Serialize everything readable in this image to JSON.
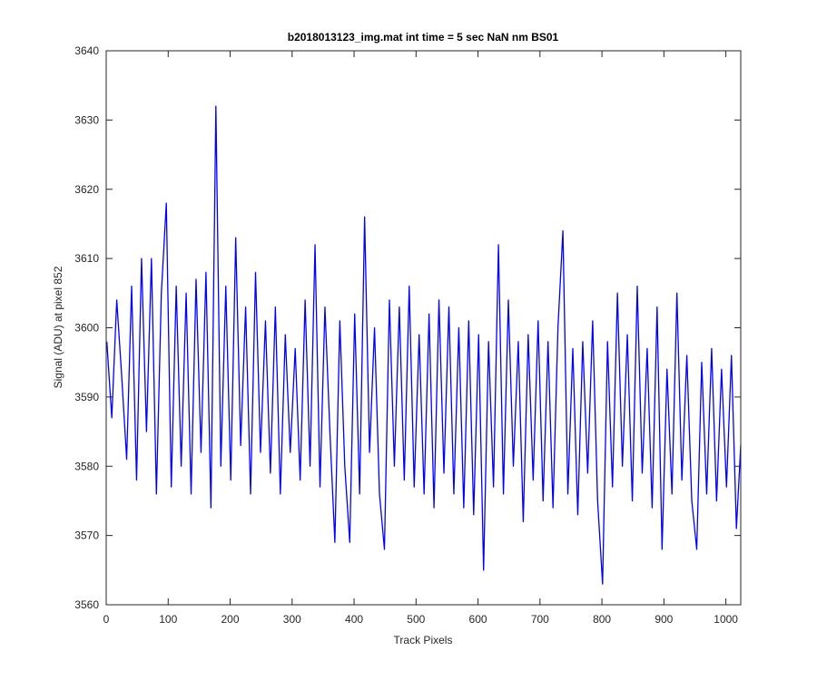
{
  "chart_data": {
    "type": "line",
    "title": "b2018013123_img.mat int time = 5 sec  NaN nm BS01",
    "x_label": "Track Pixels",
    "y_label": "Signal (ADU) at pixel 852",
    "color": "#0000ff",
    "grid": false,
    "xlim": [
      0,
      1024
    ],
    "ylim": [
      3560,
      3640
    ],
    "xticks": [
      0,
      100,
      200,
      300,
      400,
      500,
      600,
      700,
      800,
      900,
      1000
    ],
    "yticks": [
      3560,
      3570,
      3580,
      3590,
      3600,
      3610,
      3620,
      3630,
      3640
    ],
    "x": [
      1,
      9,
      17,
      25,
      33,
      41,
      49,
      57,
      65,
      73,
      81,
      89,
      97,
      105,
      113,
      121,
      129,
      137,
      145,
      153,
      161,
      169,
      177,
      185,
      193,
      201,
      209,
      217,
      225,
      233,
      241,
      249,
      257,
      265,
      273,
      281,
      289,
      297,
      305,
      313,
      321,
      329,
      337,
      345,
      353,
      361,
      369,
      377,
      385,
      393,
      401,
      409,
      417,
      425,
      433,
      441,
      449,
      457,
      465,
      473,
      481,
      489,
      497,
      505,
      513,
      521,
      529,
      537,
      545,
      553,
      561,
      569,
      577,
      585,
      593,
      601,
      609,
      617,
      625,
      633,
      641,
      649,
      657,
      665,
      673,
      681,
      689,
      697,
      705,
      713,
      721,
      729,
      737,
      745,
      753,
      761,
      769,
      777,
      785,
      793,
      801,
      809,
      817,
      825,
      833,
      841,
      849,
      857,
      865,
      873,
      881,
      889,
      897,
      905,
      913,
      921,
      929,
      937,
      945,
      953,
      961,
      969,
      977,
      985,
      993,
      1001,
      1009,
      1017,
      1024
    ],
    "values": [
      3598,
      3587,
      3604,
      3593,
      3581,
      3606,
      3578,
      3610,
      3585,
      3610,
      3576,
      3605,
      3618,
      3577,
      3606,
      3580,
      3605,
      3576,
      3607,
      3582,
      3608,
      3574,
      3632,
      3580,
      3606,
      3578,
      3613,
      3583,
      3603,
      3576,
      3608,
      3582,
      3601,
      3579,
      3603,
      3576,
      3599,
      3582,
      3597,
      3578,
      3604,
      3580,
      3612,
      3577,
      3603,
      3585,
      3569,
      3601,
      3580,
      3569,
      3602,
      3576,
      3616,
      3582,
      3600,
      3576,
      3568,
      3604,
      3580,
      3603,
      3578,
      3606,
      3577,
      3599,
      3576,
      3602,
      3574,
      3604,
      3579,
      3603,
      3576,
      3600,
      3574,
      3601,
      3573,
      3599,
      3565,
      3598,
      3577,
      3612,
      3576,
      3604,
      3580,
      3598,
      3572,
      3599,
      3578,
      3601,
      3575,
      3598,
      3574,
      3600,
      3614,
      3576,
      3597,
      3573,
      3598,
      3579,
      3601,
      3575,
      3563,
      3598,
      3577,
      3605,
      3580,
      3599,
      3575,
      3606,
      3579,
      3597,
      3574,
      3603,
      3568,
      3594,
      3576,
      3605,
      3578,
      3596,
      3575,
      3568,
      3595,
      3576,
      3597,
      3575,
      3594,
      3577,
      3596,
      3571,
      3583
    ]
  }
}
